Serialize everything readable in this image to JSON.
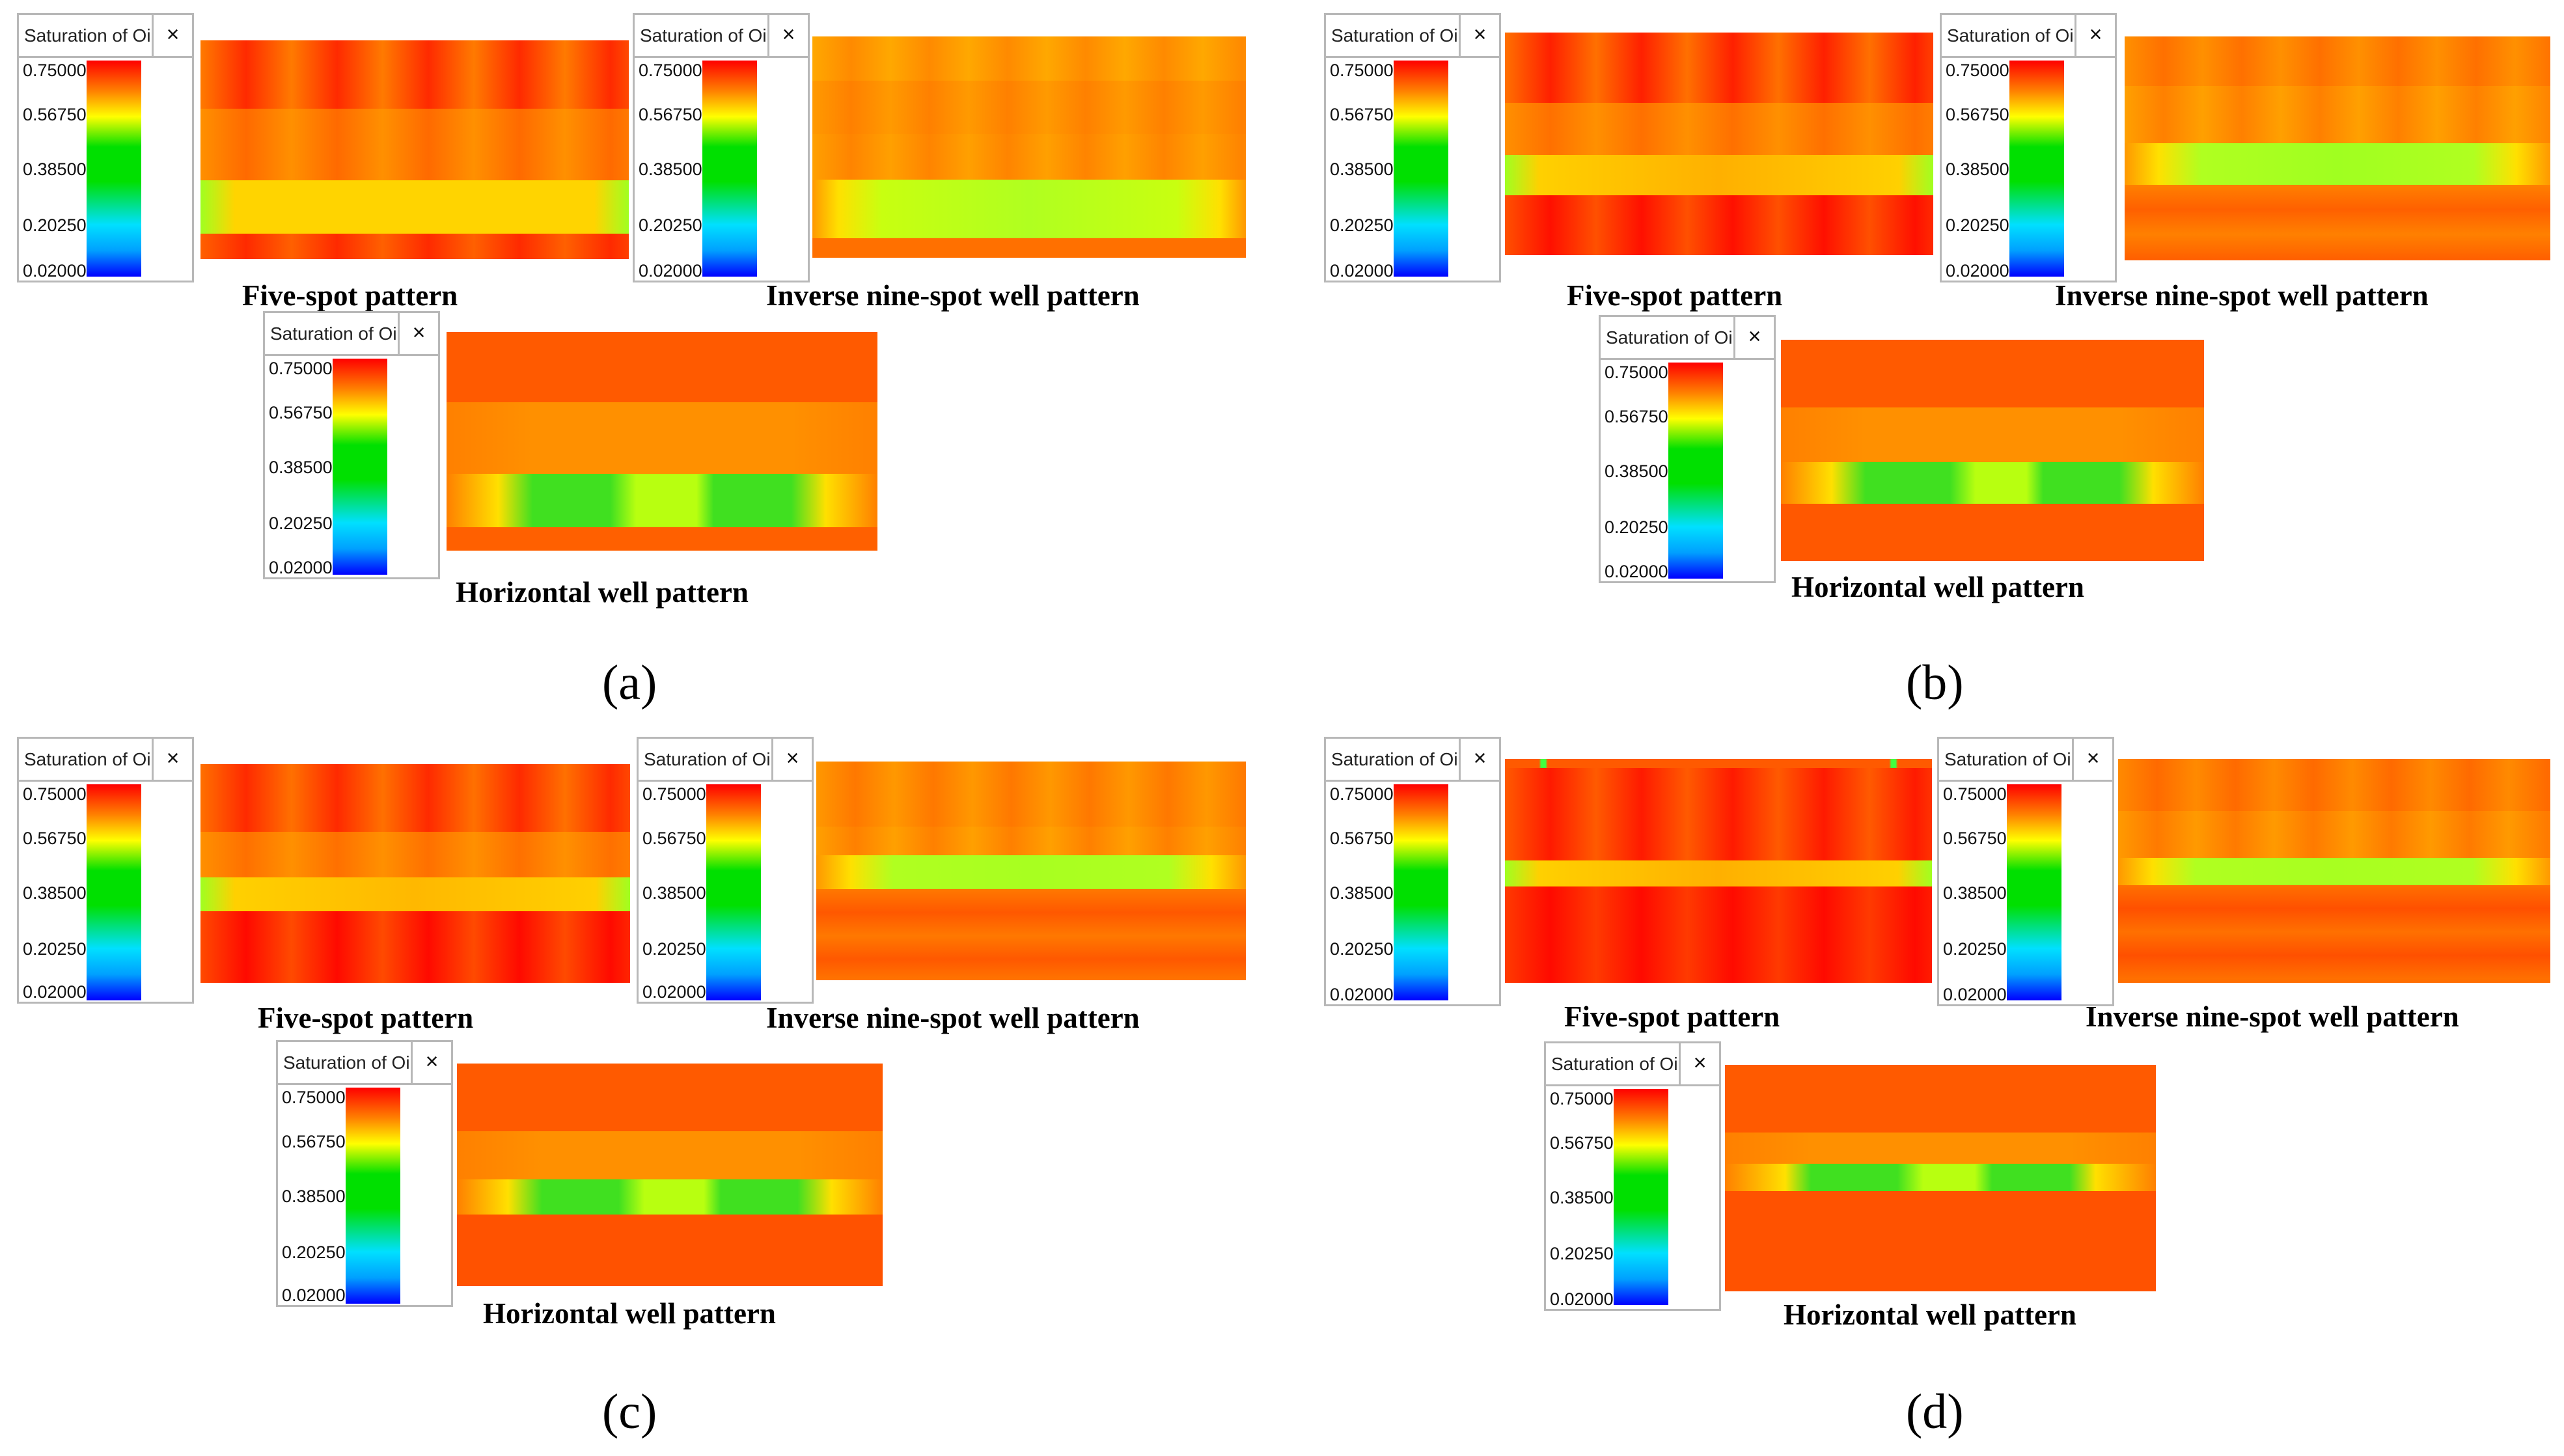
{
  "legend": {
    "title": "Saturation of Oil",
    "close_glyph": "×",
    "ticks": [
      "0.75000",
      "0.56750",
      "0.38500",
      "0.20250",
      "0.02000"
    ],
    "colors": [
      "#ff0000",
      "#ff8000",
      "#ffff00",
      "#00e000",
      "#00e0ff",
      "#0000ff"
    ]
  },
  "captions": {
    "five_spot": "Five-spot pattern",
    "inverse_nine_spot": "Inverse nine-spot well pattern",
    "horizontal": "Horizontal well pattern"
  },
  "panels": [
    {
      "label": "(a)"
    },
    {
      "label": "(b)"
    },
    {
      "label": "(c)"
    },
    {
      "label": "(d)"
    }
  ]
}
